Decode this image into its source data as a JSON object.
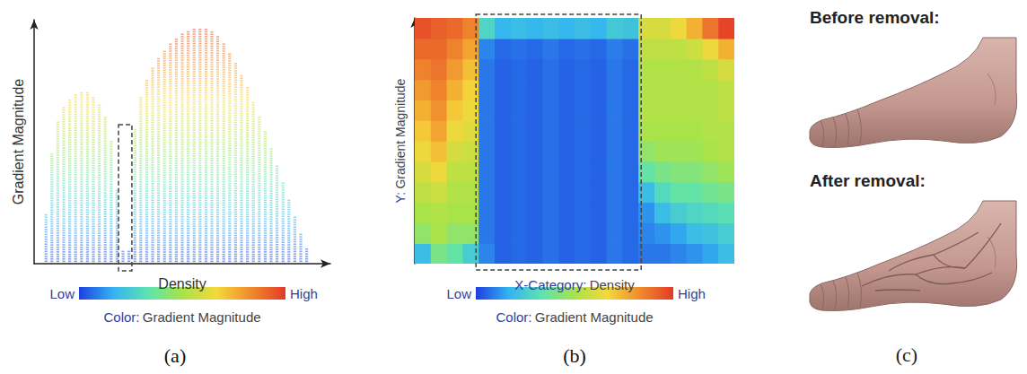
{
  "chart_data": [
    {
      "type": "scatter",
      "panel_label": "(a)",
      "xlabel": "Density",
      "ylabel": "Gradient Magnitude",
      "xlim": [
        0,
        100
      ],
      "ylim": [
        0,
        100
      ],
      "tick_labels": false,
      "grid": false,
      "x": [
        4,
        6,
        8,
        10,
        12,
        14,
        16,
        18,
        20,
        22,
        24,
        26,
        28,
        30,
        32,
        34,
        36,
        38,
        40,
        42,
        44,
        46,
        48,
        50,
        52,
        54,
        56,
        58,
        60,
        62,
        64,
        66,
        68,
        70,
        72,
        74,
        76,
        78,
        80,
        82,
        84,
        86,
        88,
        90,
        92
      ],
      "values": [
        20,
        45,
        58,
        64,
        67,
        69,
        70,
        70,
        68,
        65,
        60,
        50,
        30,
        5,
        5,
        55,
        68,
        75,
        80,
        84,
        87,
        90,
        92,
        94,
        95,
        96,
        96,
        96,
        95,
        93,
        90,
        86,
        82,
        77,
        72,
        66,
        60,
        54,
        47,
        40,
        33,
        26,
        19,
        12,
        6
      ],
      "highlight": {
        "xlim": [
          28.5,
          33
        ],
        "ylim": [
          0,
          57
        ]
      },
      "colorbar": {
        "range": [
          0,
          100
        ],
        "colors": [
          "#1f3fe0",
          "#33b3f2",
          "#5de3b0",
          "#a8e34a",
          "#f5d83a",
          "#f08a2e",
          "#e43a26"
        ],
        "low_label": "Low",
        "high_label": "High",
        "label": "Color:",
        "title": "Gradient Magnitude"
      }
    },
    {
      "type": "heatmap",
      "panel_label": "(b)",
      "xlabel": {
        "prefix": "X-Category:",
        "text": "Density"
      },
      "ylabel": {
        "prefix": "Y:",
        "text": "Gradient Magnitude"
      },
      "tick_labels": false,
      "grid": false,
      "cells": [
        [
          20,
          45,
          50,
          55,
          60,
          65,
          70,
          75,
          80,
          85,
          90,
          95
        ],
        [
          40,
          50,
          52,
          58,
          65,
          72,
          78,
          82,
          85,
          88,
          90,
          92
        ],
        [
          35,
          45,
          50,
          52,
          55,
          60,
          65,
          70,
          75,
          80,
          85,
          90
        ],
        [
          25,
          45,
          50,
          52,
          55,
          58,
          62,
          65,
          68,
          72,
          78,
          85
        ],
        [
          10,
          8,
          8,
          8,
          8,
          8,
          8,
          8,
          8,
          8,
          10,
          28
        ],
        [
          5,
          5,
          5,
          5,
          5,
          5,
          5,
          5,
          5,
          5,
          6,
          18
        ],
        [
          6,
          6,
          6,
          6,
          6,
          6,
          6,
          6,
          6,
          6,
          7,
          20
        ],
        [
          5,
          5,
          5,
          5,
          5,
          5,
          5,
          5,
          5,
          5,
          6,
          18
        ],
        [
          7,
          7,
          7,
          7,
          7,
          7,
          7,
          7,
          7,
          7,
          8,
          20
        ],
        [
          5,
          5,
          5,
          5,
          5,
          5,
          5,
          5,
          5,
          5,
          6,
          18
        ],
        [
          6,
          6,
          6,
          6,
          6,
          6,
          6,
          6,
          6,
          6,
          7,
          20
        ],
        [
          5,
          5,
          5,
          5,
          5,
          5,
          5,
          5,
          5,
          5,
          6,
          18
        ],
        [
          8,
          8,
          8,
          8,
          8,
          8,
          8,
          8,
          8,
          8,
          9,
          24
        ],
        [
          6,
          6,
          6,
          6,
          6,
          6,
          6,
          6,
          6,
          6,
          7,
          22
        ],
        [
          8,
          10,
          12,
          20,
          35,
          45,
          50,
          52,
          52,
          52,
          55,
          60
        ],
        [
          8,
          12,
          20,
          30,
          40,
          48,
          50,
          52,
          52,
          52,
          55,
          60
        ],
        [
          10,
          15,
          25,
          35,
          42,
          48,
          50,
          52,
          52,
          52,
          55,
          65
        ],
        [
          12,
          20,
          28,
          35,
          42,
          48,
          50,
          52,
          52,
          52,
          58,
          75
        ],
        [
          15,
          22,
          30,
          38,
          45,
          50,
          52,
          52,
          52,
          55,
          65,
          88
        ],
        [
          20,
          25,
          32,
          40,
          48,
          52,
          52,
          55,
          55,
          60,
          75,
          98
        ]
      ],
      "highlight": {
        "columns": [
          4,
          13
        ]
      },
      "colorbar": {
        "range": [
          0,
          100
        ],
        "colors": [
          "#1f3fe0",
          "#33b3f2",
          "#5de3b0",
          "#a8e34a",
          "#f5d83a",
          "#f08a2e",
          "#e43a26"
        ],
        "low_label": "Low",
        "high_label": "High",
        "label": "Color:",
        "title": "Gradient Magnitude"
      }
    }
  ],
  "images": {
    "panel_label": "(c)",
    "before": "Before removal:",
    "after": "After removal:"
  }
}
